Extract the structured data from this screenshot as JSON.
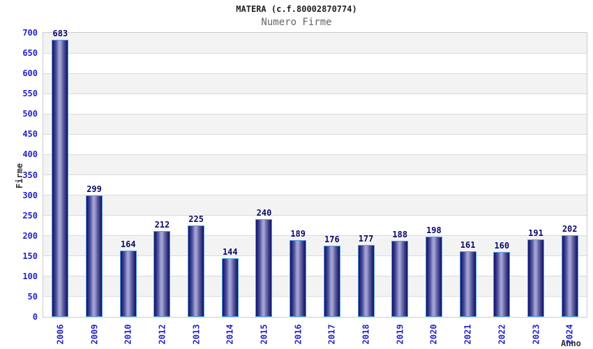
{
  "chart_data": {
    "type": "bar",
    "title": "MATERA (c.f.80002870774)",
    "subtitle": "Numero Firme",
    "xlabel": "Anno",
    "ylabel": "Firme",
    "categories": [
      "2006",
      "2009",
      "2010",
      "2012",
      "2013",
      "2014",
      "2015",
      "2016",
      "2017",
      "2018",
      "2019",
      "2020",
      "2021",
      "2022",
      "2023",
      "2024"
    ],
    "values": [
      683,
      299,
      164,
      212,
      225,
      144,
      240,
      189,
      176,
      177,
      188,
      198,
      161,
      160,
      191,
      202
    ],
    "ylim": [
      0,
      700
    ],
    "ytick_step": 50,
    "grid": "horizontal",
    "bands": "alternating",
    "legend": "none",
    "bar_labels": "above",
    "colors": {
      "bar_dark": "#15155e",
      "bar_light": "#a2a2d6",
      "bar_border": "#4f9fe0",
      "axis_text": "#2323cc",
      "value_text": "#0a0a6a",
      "band": "#f3f3f3",
      "gridline": "#dadada",
      "plot_border": "#cccccc",
      "title_text": "#222222",
      "subtitle_text": "#666666"
    }
  }
}
